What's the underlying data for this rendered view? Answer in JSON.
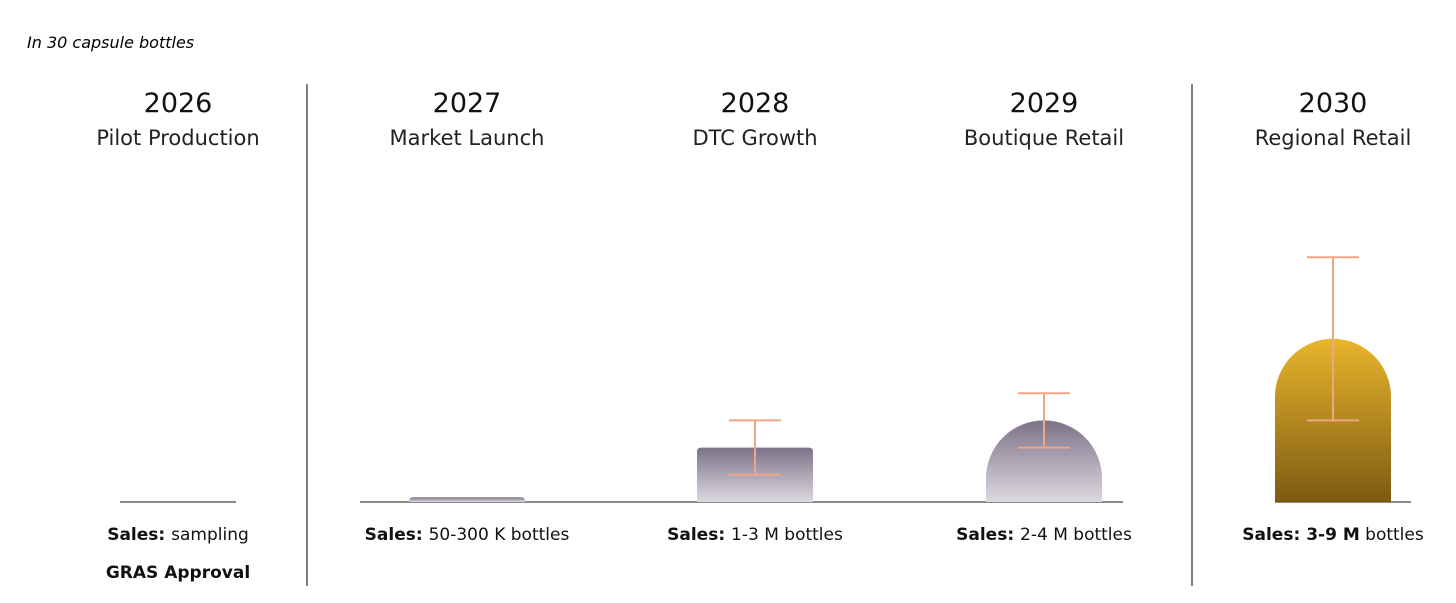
{
  "chart_data": {
    "type": "bar",
    "note": "In 30 capsule bottles",
    "unit": "M bottles",
    "categories": [
      {
        "year": "2026",
        "stage": "Pilot Production",
        "sales_label": "Sales:",
        "sales_value": "sampling",
        "extra": "GRAS Approval"
      },
      {
        "year": "2027",
        "stage": "Market Launch",
        "sales_label": "Sales:",
        "sales_value": "50-300 K bottles",
        "extra": ""
      },
      {
        "year": "2028",
        "stage": "DTC Growth",
        "sales_label": "Sales:",
        "sales_value": "1-3 M bottles",
        "extra": ""
      },
      {
        "year": "2029",
        "stage": "Boutique Retail",
        "sales_label": "Sales:",
        "sales_value": "2-4 M bottles",
        "extra": ""
      },
      {
        "year": "2030",
        "stage": "Regional Retail",
        "sales_label": "Sales:",
        "sales_value": "3-9 M bottles",
        "sales_value_bold": "3-9 M",
        "sales_value_rest": " bottles",
        "extra": ""
      }
    ],
    "values": [
      0,
      0.175,
      2,
      3,
      6
    ],
    "error_low": [
      null,
      null,
      1,
      2,
      3
    ],
    "error_high": [
      null,
      null,
      3,
      4,
      9
    ],
    "colors": {
      "bar": "#7d7288",
      "bar_fade": "#ddd9e0",
      "highlight": "#e8b52c",
      "highlight_dark": "#7d5a12",
      "error_bar": "#f0a585",
      "axis": "#8a8a8a",
      "divider": "#555555"
    }
  }
}
